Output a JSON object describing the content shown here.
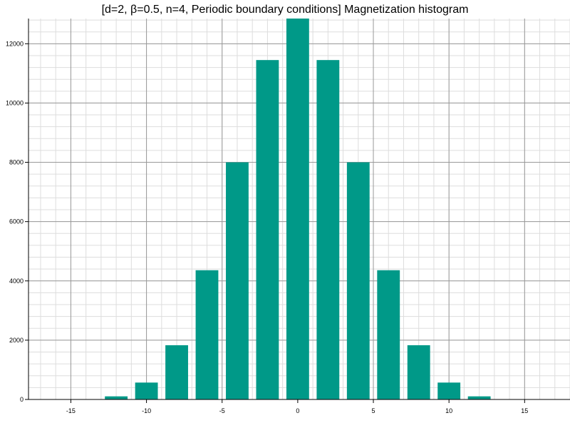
{
  "chart_data": {
    "type": "bar",
    "title": "[d=2, β=0.5, n=4, Periodic boundary conditions] Magnetization histogram",
    "xlabel": "",
    "ylabel": "",
    "x": [
      -16,
      -14,
      -12,
      -10,
      -8,
      -6,
      -4,
      -2,
      0,
      2,
      4,
      6,
      8,
      10,
      12,
      14,
      16
    ],
    "values": [
      0,
      2,
      105,
      570,
      1830,
      4360,
      8000,
      11450,
      12850,
      11450,
      8000,
      4360,
      1830,
      570,
      105,
      2,
      0
    ],
    "xlim": [
      -17.8,
      18
    ],
    "ylim": [
      0,
      12850
    ],
    "xticks": [
      "-15",
      "-10",
      "-5",
      "0",
      "5",
      "10",
      "15"
    ],
    "yticks": [
      "0",
      "2000",
      "4000",
      "6000",
      "8000",
      "10000",
      "12000"
    ],
    "bar_width": 1.5,
    "grid": "major-and-minor",
    "legend": "none",
    "colors": {
      "bar": "#009988",
      "major_grid": "#999999",
      "minor_grid": "#dddddd",
      "axis": "#000000"
    }
  }
}
